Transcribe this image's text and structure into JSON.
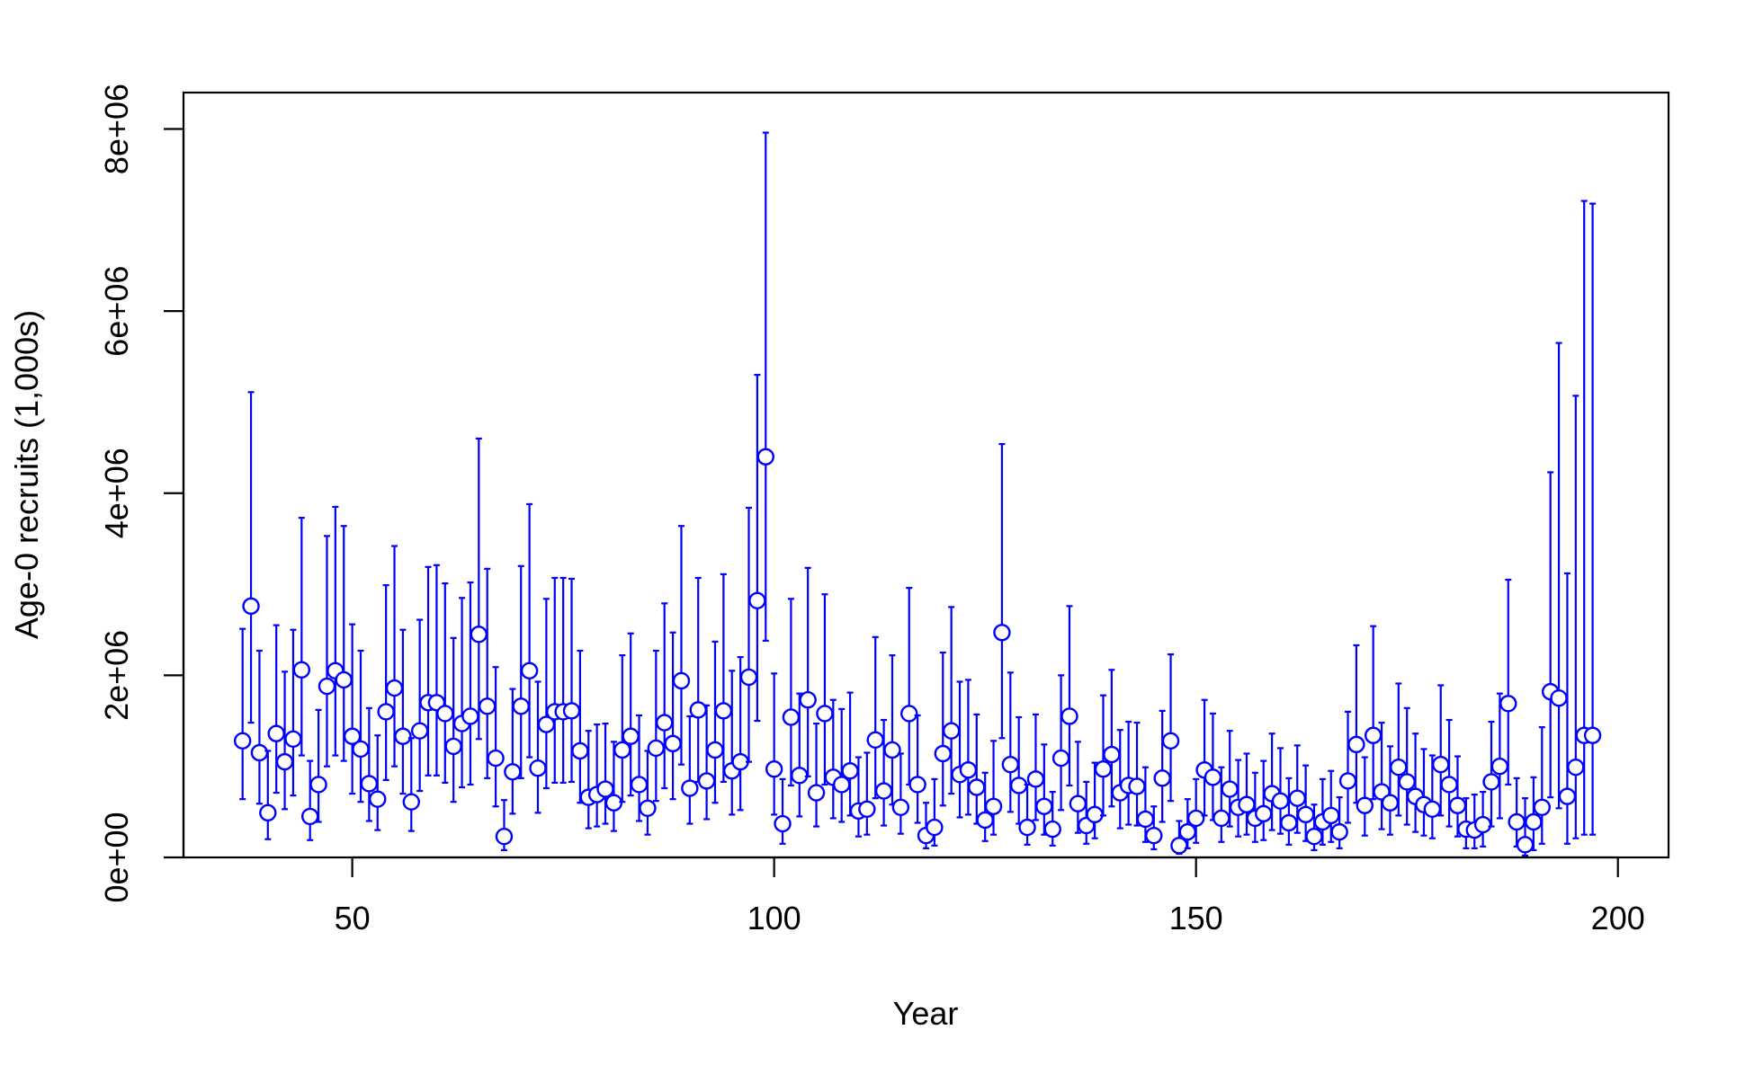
{
  "chart_data": {
    "type": "scatter",
    "title": "",
    "xlabel": "Year",
    "ylabel": "Age-0 recruits (1,000s)",
    "xlim": [
      30,
      206
    ],
    "ylim": [
      0,
      8400000
    ],
    "x_ticks": [
      50,
      100,
      150,
      200
    ],
    "x_tick_labels": [
      "50",
      "100",
      "150",
      "200"
    ],
    "y_ticks": [
      0,
      2000000,
      4000000,
      6000000,
      8000000
    ],
    "y_tick_labels": [
      "0e+00",
      "2e+06",
      "4e+06",
      "6e+06",
      "8e+06"
    ],
    "grid": false,
    "legend": "none",
    "marker": "open-circle",
    "error_bars": true,
    "color": "#0000FF",
    "x": [
      37,
      38,
      39,
      40,
      41,
      42,
      43,
      44,
      45,
      46,
      47,
      48,
      49,
      50,
      51,
      52,
      53,
      54,
      55,
      56,
      57,
      58,
      59,
      60,
      61,
      62,
      63,
      64,
      65,
      66,
      67,
      68,
      69,
      70,
      71,
      72,
      73,
      74,
      75,
      76,
      77,
      78,
      79,
      80,
      81,
      82,
      83,
      84,
      85,
      86,
      87,
      88,
      89,
      90,
      91,
      92,
      93,
      94,
      95,
      96,
      97,
      98,
      99,
      100,
      101,
      102,
      103,
      104,
      105,
      106,
      107,
      108,
      109,
      110,
      111,
      112,
      113,
      114,
      115,
      116,
      117,
      118,
      119,
      120,
      121,
      122,
      123,
      124,
      125,
      126,
      127,
      128,
      129,
      130,
      131,
      132,
      133,
      134,
      135,
      136,
      137,
      138,
      139,
      140,
      141,
      142,
      143,
      144,
      145,
      146,
      147,
      148,
      149,
      150,
      151,
      152,
      153,
      154,
      155,
      156,
      157,
      158,
      159,
      160,
      161,
      162,
      163,
      164,
      165,
      166,
      167,
      168,
      169,
      170,
      171,
      172,
      173,
      174,
      175,
      176,
      177,
      178,
      179,
      180,
      181,
      182,
      183,
      184,
      185,
      186,
      187,
      188,
      189,
      190,
      191,
      192,
      193,
      194,
      195,
      196,
      197
    ],
    "values": [
      1280000,
      2760000,
      1150000,
      490000,
      1360000,
      1050000,
      1300000,
      2060000,
      450000,
      800000,
      1880000,
      2050000,
      1950000,
      1330000,
      1190000,
      810000,
      640000,
      1600000,
      1860000,
      1330000,
      610000,
      1390000,
      1700000,
      1700000,
      1580000,
      1220000,
      1470000,
      1550000,
      2450000,
      1660000,
      1090000,
      230000,
      940000,
      1660000,
      2050000,
      980000,
      1460000,
      1600000,
      1600000,
      1610000,
      1170000,
      660000,
      690000,
      750000,
      600000,
      1180000,
      1330000,
      800000,
      540000,
      1200000,
      1480000,
      1250000,
      1940000,
      760000,
      1620000,
      840000,
      1180000,
      1610000,
      950000,
      1050000,
      1980000,
      2820000,
      4400000,
      970000,
      370000,
      1540000,
      900000,
      1730000,
      710000,
      1580000,
      880000,
      800000,
      950000,
      510000,
      530000,
      1290000,
      730000,
      1180000,
      550000,
      1580000,
      800000,
      240000,
      330000,
      1140000,
      1390000,
      910000,
      960000,
      770000,
      410000,
      560000,
      2470000,
      1020000,
      790000,
      330000,
      860000,
      560000,
      310000,
      1090000,
      1550000,
      590000,
      350000,
      470000,
      970000,
      1130000,
      710000,
      790000,
      780000,
      420000,
      240000,
      870000,
      1280000,
      130000,
      280000,
      430000,
      960000,
      880000,
      430000,
      750000,
      550000,
      580000,
      430000,
      480000,
      700000,
      620000,
      380000,
      650000,
      470000,
      230000,
      390000,
      460000,
      280000,
      840000,
      1240000,
      570000,
      1340000,
      720000,
      600000,
      990000,
      830000,
      670000,
      580000,
      530000,
      1020000,
      800000,
      570000,
      310000,
      300000,
      360000,
      830000,
      1000000,
      1690000,
      390000,
      140000,
      390000,
      550000,
      1820000,
      1750000,
      670000,
      990000,
      1340000,
      1340000
    ],
    "lower": [
      640000,
      1480000,
      590000,
      200000,
      710000,
      530000,
      680000,
      1120000,
      190000,
      390000,
      1000000,
      1120000,
      1060000,
      700000,
      610000,
      400000,
      300000,
      850000,
      1000000,
      700000,
      290000,
      730000,
      900000,
      900000,
      820000,
      610000,
      770000,
      800000,
      1300000,
      870000,
      560000,
      80000,
      480000,
      870000,
      1100000,
      490000,
      760000,
      820000,
      820000,
      830000,
      600000,
      320000,
      340000,
      370000,
      290000,
      610000,
      680000,
      400000,
      250000,
      620000,
      760000,
      640000,
      1020000,
      370000,
      830000,
      420000,
      600000,
      830000,
      470000,
      520000,
      1050000,
      1500000,
      2380000,
      470000,
      150000,
      790000,
      450000,
      890000,
      340000,
      800000,
      430000,
      390000,
      460000,
      230000,
      250000,
      650000,
      350000,
      580000,
      260000,
      800000,
      380000,
      100000,
      130000,
      570000,
      700000,
      440000,
      470000,
      370000,
      180000,
      250000,
      1310000,
      500000,
      370000,
      140000,
      410000,
      250000,
      130000,
      520000,
      790000,
      270000,
      150000,
      210000,
      460000,
      560000,
      320000,
      360000,
      350000,
      170000,
      90000,
      390000,
      620000,
      40000,
      100000,
      160000,
      460000,
      410000,
      170000,
      340000,
      230000,
      250000,
      170000,
      190000,
      300000,
      260000,
      140000,
      270000,
      180000,
      80000,
      140000,
      170000,
      100000,
      380000,
      600000,
      240000,
      640000,
      310000,
      250000,
      460000,
      360000,
      280000,
      240000,
      210000,
      460000,
      340000,
      230000,
      100000,
      100000,
      120000,
      340000,
      430000,
      800000,
      120000,
      20000,
      80000,
      150000,
      660000,
      540000,
      150000,
      210000,
      250000,
      250000
    ],
    "upper": [
      2510000,
      5110000,
      2270000,
      1170000,
      2550000,
      2040000,
      2500000,
      3730000,
      1060000,
      1620000,
      3530000,
      3850000,
      3640000,
      2560000,
      2270000,
      1640000,
      1340000,
      2990000,
      3420000,
      2500000,
      1310000,
      2610000,
      3190000,
      3210000,
      3010000,
      2410000,
      2850000,
      3020000,
      4600000,
      3170000,
      2090000,
      630000,
      1850000,
      3200000,
      3880000,
      1930000,
      2840000,
      3070000,
      3070000,
      3060000,
      2270000,
      1390000,
      1460000,
      1470000,
      1270000,
      2220000,
      2460000,
      1560000,
      1170000,
      2270000,
      2790000,
      2470000,
      3640000,
      1550000,
      3070000,
      1670000,
      2370000,
      3110000,
      2050000,
      2200000,
      3840000,
      5300000,
      7960000,
      2020000,
      860000,
      2840000,
      1800000,
      3180000,
      1470000,
      2890000,
      1730000,
      1630000,
      1810000,
      1100000,
      1150000,
      2420000,
      1510000,
      2220000,
      1140000,
      2960000,
      1560000,
      600000,
      860000,
      2250000,
      2750000,
      1930000,
      1950000,
      1570000,
      930000,
      1280000,
      4540000,
      2030000,
      1540000,
      800000,
      1570000,
      1240000,
      720000,
      2000000,
      2760000,
      1270000,
      830000,
      1040000,
      1780000,
      2060000,
      1400000,
      1490000,
      1480000,
      990000,
      560000,
      1610000,
      2230000,
      400000,
      640000,
      860000,
      1730000,
      1580000,
      990000,
      1390000,
      1070000,
      1140000,
      930000,
      1060000,
      1360000,
      1200000,
      870000,
      1230000,
      1010000,
      580000,
      860000,
      950000,
      660000,
      1600000,
      2330000,
      1100000,
      2540000,
      1480000,
      1220000,
      1910000,
      1640000,
      1360000,
      1190000,
      1120000,
      1890000,
      1510000,
      1110000,
      650000,
      690000,
      720000,
      1490000,
      1800000,
      3050000,
      870000,
      650000,
      880000,
      1430000,
      4230000,
      5650000,
      3120000,
      5070000,
      7210000,
      7180000
    ]
  }
}
